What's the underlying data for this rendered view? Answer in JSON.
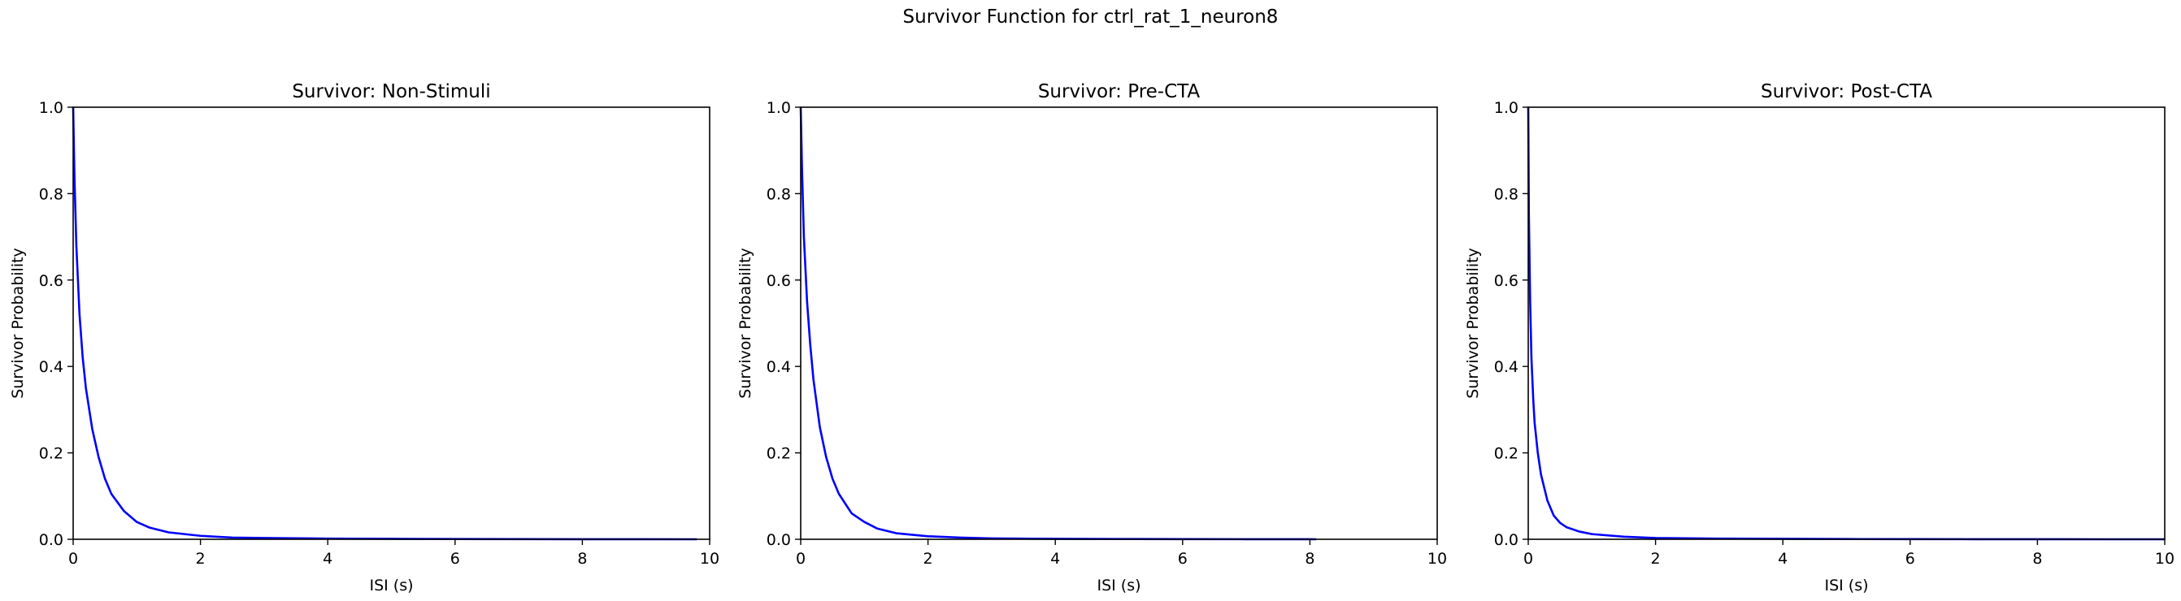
{
  "figure": {
    "suptitle": "Survivor Function for ctrl_rat_1_neuron8"
  },
  "chart_data": [
    {
      "type": "line",
      "title": "Survivor: Non-Stimuli",
      "xlabel": "ISI (s)",
      "ylabel": "Survivor Probability",
      "xlim": [
        0,
        10
      ],
      "ylim": [
        0,
        1
      ],
      "xticks": [
        "0",
        "2",
        "4",
        "6",
        "8",
        "10"
      ],
      "yticks": [
        "0.0",
        "0.2",
        "0.4",
        "0.6",
        "0.8",
        "1.0"
      ],
      "grid": false,
      "color": "#0000ff",
      "series": [
        {
          "x": [
            0,
            0.02,
            0.05,
            0.1,
            0.15,
            0.2,
            0.3,
            0.4,
            0.5,
            0.6,
            0.8,
            1.0,
            1.2,
            1.5,
            2.0,
            2.5,
            3.0,
            4.0,
            5.0,
            6.0,
            7.0,
            8.0,
            9.0,
            9.8
          ],
          "y": [
            1.0,
            0.84,
            0.68,
            0.52,
            0.42,
            0.35,
            0.255,
            0.19,
            0.14,
            0.105,
            0.065,
            0.04,
            0.027,
            0.016,
            0.008,
            0.004,
            0.003,
            0.0015,
            0.001,
            0.0005,
            0.0003,
            0.0002,
            0.0001,
            0.0
          ]
        }
      ]
    },
    {
      "type": "line",
      "title": "Survivor: Pre-CTA",
      "xlabel": "ISI (s)",
      "ylabel": "Survivor Probability",
      "xlim": [
        0,
        10
      ],
      "ylim": [
        0,
        1
      ],
      "xticks": [
        "0",
        "2",
        "4",
        "6",
        "8",
        "10"
      ],
      "yticks": [
        "0.0",
        "0.2",
        "0.4",
        "0.6",
        "0.8",
        "1.0"
      ],
      "grid": false,
      "color": "#0000ff",
      "series": [
        {
          "x": [
            0,
            0.02,
            0.05,
            0.1,
            0.15,
            0.2,
            0.3,
            0.4,
            0.5,
            0.6,
            0.8,
            1.0,
            1.2,
            1.5,
            2.0,
            2.5,
            3.0,
            4.0,
            5.0,
            6.0,
            7.0,
            8.0,
            8.1
          ],
          "y": [
            1.0,
            0.86,
            0.7,
            0.55,
            0.45,
            0.37,
            0.26,
            0.19,
            0.14,
            0.105,
            0.06,
            0.04,
            0.025,
            0.014,
            0.007,
            0.004,
            0.002,
            0.001,
            0.0006,
            0.0003,
            0.0002,
            0.0001,
            0.0
          ]
        }
      ]
    },
    {
      "type": "line",
      "title": "Survivor: Post-CTA",
      "xlabel": "ISI (s)",
      "ylabel": "Survivor Probability",
      "xlim": [
        0,
        10
      ],
      "ylim": [
        0,
        1
      ],
      "xticks": [
        "0",
        "2",
        "4",
        "6",
        "8",
        "10"
      ],
      "yticks": [
        "0.0",
        "0.2",
        "0.4",
        "0.6",
        "0.8",
        "1.0"
      ],
      "grid": false,
      "color": "#0000ff",
      "series": [
        {
          "x": [
            0,
            0.01,
            0.03,
            0.05,
            0.08,
            0.1,
            0.15,
            0.2,
            0.3,
            0.4,
            0.5,
            0.6,
            0.8,
            1.0,
            1.5,
            2.0,
            3.0,
            4.0,
            5.0,
            6.0,
            7.0,
            8.0,
            9.0,
            10.0
          ],
          "y": [
            1.0,
            0.75,
            0.55,
            0.42,
            0.32,
            0.27,
            0.2,
            0.15,
            0.09,
            0.055,
            0.038,
            0.028,
            0.018,
            0.012,
            0.006,
            0.003,
            0.0015,
            0.001,
            0.0005,
            0.0003,
            0.0002,
            0.0001,
            0.0,
            0.0
          ]
        }
      ]
    }
  ]
}
